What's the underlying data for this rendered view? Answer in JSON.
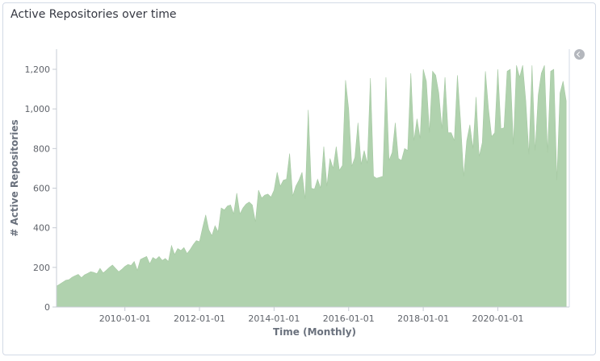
{
  "panel": {
    "title": "Active Repositories over time"
  },
  "legend": {
    "toggle_icon": "chevron-left-icon"
  },
  "chart_data": {
    "type": "area",
    "title": "Active Repositories over time",
    "xlabel": "Time (Monthly)",
    "ylabel": "# Active Repositories",
    "ylim": [
      0,
      1300
    ],
    "y_ticks": [
      0,
      200,
      400,
      600,
      800,
      1000,
      1200
    ],
    "y_tick_labels": [
      "0",
      "200",
      "400",
      "600",
      "800",
      "1,000",
      "1,200"
    ],
    "x_ticks": [
      "2010-01-01",
      "2012-01-01",
      "2014-01-01",
      "2016-01-01",
      "2018-01-01",
      "2020-01-01"
    ],
    "x_range": [
      "2008-03-01",
      "2021-12-01"
    ],
    "series": [
      {
        "color": "#b0d2ae",
        "x": [
          "2008-03",
          "2008-04",
          "2008-05",
          "2008-06",
          "2008-07",
          "2008-08",
          "2008-09",
          "2008-10",
          "2008-11",
          "2008-12",
          "2009-01",
          "2009-02",
          "2009-03",
          "2009-04",
          "2009-05",
          "2009-06",
          "2009-07",
          "2009-08",
          "2009-09",
          "2009-10",
          "2009-11",
          "2009-12",
          "2010-01",
          "2010-02",
          "2010-03",
          "2010-04",
          "2010-05",
          "2010-06",
          "2010-07",
          "2010-08",
          "2010-09",
          "2010-10",
          "2010-11",
          "2010-12",
          "2011-01",
          "2011-02",
          "2011-03",
          "2011-04",
          "2011-05",
          "2011-06",
          "2011-07",
          "2011-08",
          "2011-09",
          "2011-10",
          "2011-11",
          "2011-12",
          "2012-01",
          "2012-02",
          "2012-03",
          "2012-04",
          "2012-05",
          "2012-06",
          "2012-07",
          "2012-08",
          "2012-09",
          "2012-10",
          "2012-11",
          "2012-12",
          "2013-01",
          "2013-02",
          "2013-03",
          "2013-04",
          "2013-05",
          "2013-06",
          "2013-07",
          "2013-08",
          "2013-09",
          "2013-10",
          "2013-11",
          "2013-12",
          "2014-01",
          "2014-02",
          "2014-03",
          "2014-04",
          "2014-05",
          "2014-06",
          "2014-07",
          "2014-08",
          "2014-09",
          "2014-10",
          "2014-11",
          "2014-12",
          "2015-01",
          "2015-02",
          "2015-03",
          "2015-04",
          "2015-05",
          "2015-06",
          "2015-07",
          "2015-08",
          "2015-09",
          "2015-10",
          "2015-11",
          "2015-12",
          "2016-01",
          "2016-02",
          "2016-03",
          "2016-04",
          "2016-05",
          "2016-06",
          "2016-07",
          "2016-08",
          "2016-09",
          "2016-10",
          "2016-11",
          "2016-12",
          "2017-01",
          "2017-02",
          "2017-03",
          "2017-04",
          "2017-05",
          "2017-06",
          "2017-07",
          "2017-08",
          "2017-09",
          "2017-10",
          "2017-11",
          "2017-12",
          "2018-01",
          "2018-02",
          "2018-03",
          "2018-04",
          "2018-05",
          "2018-06",
          "2018-07",
          "2018-08",
          "2018-09",
          "2018-10",
          "2018-11",
          "2018-12",
          "2019-01",
          "2019-02",
          "2019-03",
          "2019-04",
          "2019-05",
          "2019-06",
          "2019-07",
          "2019-08",
          "2019-09",
          "2019-10",
          "2019-11",
          "2019-12",
          "2020-01",
          "2020-02",
          "2020-03",
          "2020-04",
          "2020-05",
          "2020-06",
          "2020-07",
          "2020-08",
          "2020-09",
          "2020-10",
          "2020-11",
          "2020-12",
          "2021-01",
          "2021-02",
          "2021-03",
          "2021-04",
          "2021-05",
          "2021-06",
          "2021-07",
          "2021-08",
          "2021-09",
          "2021-10",
          "2021-11"
        ],
        "values": [
          105,
          115,
          125,
          135,
          138,
          150,
          158,
          165,
          148,
          162,
          170,
          178,
          175,
          168,
          195,
          172,
          185,
          200,
          212,
          195,
          178,
          190,
          205,
          215,
          210,
          230,
          185,
          240,
          248,
          255,
          218,
          250,
          240,
          255,
          235,
          245,
          230,
          310,
          265,
          295,
          285,
          300,
          270,
          290,
          315,
          335,
          330,
          400,
          465,
          390,
          360,
          410,
          380,
          500,
          490,
          510,
          515,
          470,
          575,
          470,
          500,
          520,
          530,
          515,
          430,
          590,
          550,
          565,
          570,
          555,
          590,
          680,
          610,
          640,
          645,
          775,
          560,
          610,
          640,
          680,
          545,
          995,
          600,
          595,
          645,
          600,
          810,
          610,
          750,
          700,
          810,
          690,
          715,
          1145,
          1000,
          710,
          755,
          930,
          720,
          790,
          725,
          1155,
          660,
          650,
          655,
          660,
          1160,
          740,
          780,
          930,
          750,
          740,
          800,
          790,
          1180,
          840,
          950,
          850,
          1200,
          1140,
          880,
          1190,
          1170,
          1080,
          900,
          1160,
          880,
          880,
          840,
          1170,
          940,
          660,
          840,
          920,
          800,
          1060,
          760,
          830,
          1190,
          1000,
          860,
          880,
          1200,
          900,
          905,
          1190,
          1200,
          820,
          1220,
          1160,
          1220,
          1040,
          770,
          1220,
          790,
          1070,
          1180,
          1220,
          780,
          1190,
          1200,
          640,
          1080,
          1140,
          1040
        ]
      }
    ]
  }
}
